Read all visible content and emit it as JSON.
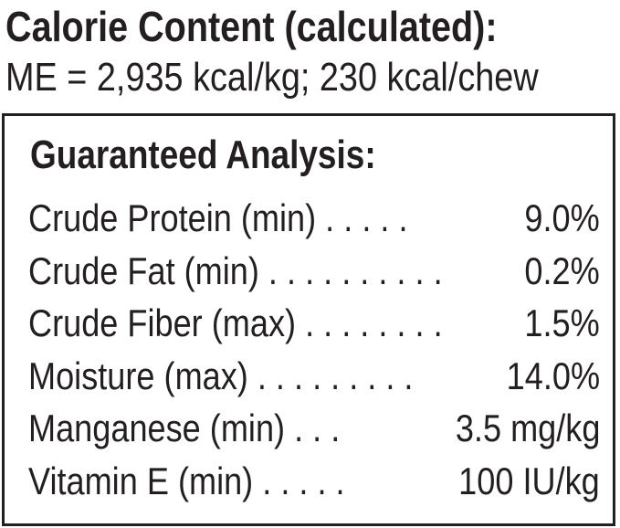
{
  "calorie": {
    "title": "Calorie Content (calculated):",
    "value": "ME = 2,935 kcal/kg; 230 kcal/chew"
  },
  "analysis": {
    "title": "Guaranteed Analysis:",
    "rows": [
      {
        "label": "Crude Protein (min) . . . . .",
        "value": "9.0%"
      },
      {
        "label": "Crude Fat (min) . . . . . . . . . .",
        "value": "0.2%"
      },
      {
        "label": "Crude Fiber (max) . . . . . . . .",
        "value": "1.5%"
      },
      {
        "label": "Moisture (max) . . . . . . . . .",
        "value": "14.0%"
      },
      {
        "label": "Manganese (min) . . .",
        "value": "3.5 mg/kg"
      },
      {
        "label": "Vitamin E (min) . . . . .",
        "value": "100 IU/kg"
      }
    ]
  }
}
